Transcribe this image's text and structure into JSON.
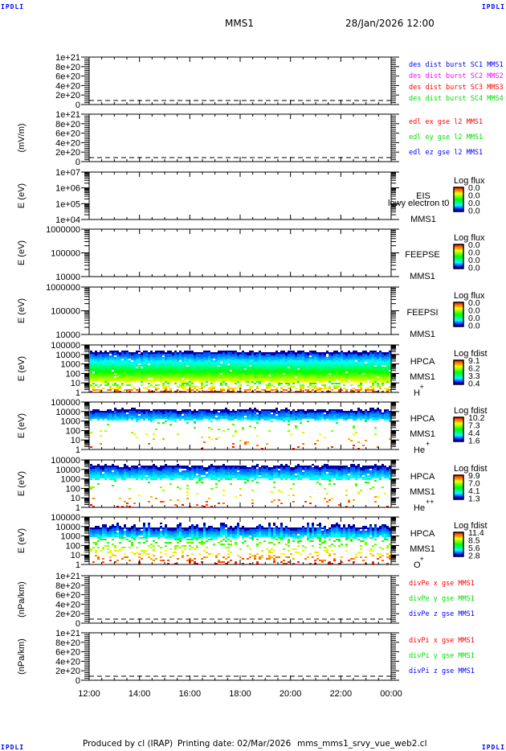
{
  "corners": {
    "tl": "IPDLI",
    "tr": "IPDLI",
    "bl": "IPDLI",
    "br": "IPDLI"
  },
  "header": {
    "spacecraft": "MMS1",
    "datetime": "28/Jan/2026 12:00"
  },
  "footer": {
    "produced": "Produced by cl (IRAP)",
    "printing": "Printing date: 02/Mar/2026",
    "file": "mms_mms1_srvy_vue_web2.cl"
  },
  "chart_data": {
    "type": "multi-panel time series / spectrogram",
    "x_ticks": [
      "12:00",
      "14:00",
      "16:00",
      "18:00",
      "20:00",
      "22:00",
      "00:00"
    ],
    "panels": [
      {
        "kind": "line",
        "ylabel": "",
        "yticks": [
          "1e+21",
          "8e+20",
          "6e+20",
          "4e+20",
          "2e+20",
          "0"
        ],
        "ylim": [
          0,
          1e+21
        ],
        "legend": [
          {
            "text": "des dist burst SC1 MMS1",
            "color": "#0000ff"
          },
          {
            "text": "des dist burst SC2 MMS2",
            "color": "#ff00ff"
          },
          {
            "text": "des dist burst SC3 MMS3",
            "color": "#ff0000"
          },
          {
            "text": "des dist burst SC4 MMS4",
            "color": "#00e000"
          }
        ],
        "values": []
      },
      {
        "kind": "line",
        "ylabel": "(mV/m)",
        "yticks": [
          "1e+21",
          "8e+20",
          "6e+20",
          "4e+20",
          "2e+20",
          "0"
        ],
        "ylim": [
          0,
          1e+21
        ],
        "legend": [
          {
            "text": "edl ex gse l2 MMS1",
            "color": "#ff0000"
          },
          {
            "text": "edl ey gse l2 MMS1",
            "color": "#00e000"
          },
          {
            "text": "edl ez gse l2 MMS1",
            "color": "#0000ff"
          }
        ],
        "values": []
      },
      {
        "kind": "spectrogram",
        "ylabel": "E (eV)",
        "yticks": [
          "1e+07",
          "1e+06",
          "1e+05",
          "1e+04"
        ],
        "ylim": [
          10000.0,
          10000000.0
        ],
        "labels": [
          "EIS",
          "lowy electron t0",
          "MMS1"
        ],
        "colorbar": {
          "title": "Log flux",
          "ticks": [
            "0.0",
            "0.0",
            "0.0",
            "0.0"
          ]
        },
        "species": null
      },
      {
        "kind": "spectrogram",
        "ylabel": "E (eV)",
        "yticks": [
          "1000000",
          "100000",
          "10000"
        ],
        "ylim": [
          10000.0,
          1000000.0
        ],
        "labels": [
          "FEEPSE",
          "MMS1"
        ],
        "colorbar": {
          "title": "Log flux",
          "ticks": [
            "0.0",
            "0.0",
            "0.0",
            "0.0"
          ]
        },
        "species": null
      },
      {
        "kind": "spectrogram",
        "ylabel": "E (eV)",
        "yticks": [
          "1000000",
          "100000",
          "10000"
        ],
        "ylim": [
          10000.0,
          1000000.0
        ],
        "labels": [
          "FEEPSI",
          "MMS1"
        ],
        "colorbar": {
          "title": "Log flux",
          "ticks": [
            "0.0",
            "0.0",
            "0.0",
            "0.0"
          ]
        },
        "species": null
      },
      {
        "kind": "spectrogram",
        "ylabel": "E (eV)",
        "yticks": [
          "100000",
          "10000",
          "1000",
          "100",
          "10",
          "1"
        ],
        "ylim": [
          1,
          100000.0
        ],
        "labels": [
          "HPCA",
          "MMS1"
        ],
        "ion": {
          "base": "H",
          "sup": "+"
        },
        "colorbar": {
          "title": "Log fdist",
          "ticks": [
            "9.1",
            "6.2",
            "3.3",
            "0.4"
          ]
        },
        "profile": {
          "top_logE": 4.4,
          "dense_low_logE": 1.1,
          "sparse_prob": 0.55
        }
      },
      {
        "kind": "spectrogram",
        "ylabel": "E (eV)",
        "yticks": [
          "100000",
          "10000",
          "1000",
          "100",
          "10",
          "1"
        ],
        "ylim": [
          1,
          100000.0
        ],
        "labels": [
          "HPCA",
          "MMS1"
        ],
        "ion": {
          "base": "He",
          "sup": "+"
        },
        "colorbar": {
          "title": "Log fdist",
          "ticks": [
            "10.2",
            "7.3",
            "4.4",
            "1.6"
          ]
        },
        "profile": {
          "top_logE": 4.3,
          "dense_low_logE": 3.15,
          "sparse_prob": 0.04
        }
      },
      {
        "kind": "spectrogram",
        "ylabel": "E (eV)",
        "yticks": [
          "100000",
          "10000",
          "1000",
          "100",
          "10",
          "1"
        ],
        "ylim": [
          1,
          100000.0
        ],
        "labels": [
          "HPCA",
          "MMS1"
        ],
        "ion": {
          "base": "He",
          "sup": "++"
        },
        "colorbar": {
          "title": "Log fdist",
          "ticks": [
            "9.9",
            "7.0",
            "4.1",
            "1.3"
          ]
        },
        "profile": {
          "top_logE": 4.5,
          "dense_low_logE": 3.0,
          "sparse_prob": 0.05
        }
      },
      {
        "kind": "spectrogram",
        "ylabel": "E (eV)",
        "yticks": [
          "100000",
          "10000",
          "1000",
          "100",
          "10",
          "1"
        ],
        "ylim": [
          1,
          100000.0
        ],
        "labels": [
          "HPCA",
          "MMS1"
        ],
        "ion": {
          "base": "O",
          "sup": "+"
        },
        "colorbar": {
          "title": "Log fdist",
          "ticks": [
            "11.4",
            "8.5",
            "5.6",
            "2.8"
          ]
        },
        "profile": {
          "top_logE": 4.0,
          "dense_low_logE": 2.9,
          "sparse_prob": 0.2
        }
      },
      {
        "kind": "line",
        "ylabel": "(nPa/km)",
        "yticks": [
          "1e+21",
          "8e+20",
          "6e+20",
          "4e+20",
          "2e+20",
          "0"
        ],
        "ylim": [
          0,
          1e+21
        ],
        "legend": [
          {
            "text": "divPe x gse MMS1",
            "color": "#ff0000"
          },
          {
            "text": "divPe y gse MMS1",
            "color": "#00e000"
          },
          {
            "text": "divPe z gse MMS1",
            "color": "#0000ff"
          }
        ],
        "values": []
      },
      {
        "kind": "line",
        "ylabel": "(nPa/km)",
        "yticks": [
          "1e+21",
          "8e+20",
          "6e+20",
          "4e+20",
          "2e+20",
          "0"
        ],
        "ylim": [
          0,
          1e+21
        ],
        "legend": [
          {
            "text": "divPi x gse MMS1",
            "color": "#ff0000"
          },
          {
            "text": "divPi y gse MMS1",
            "color": "#00e000"
          },
          {
            "text": "divPi z gse MMS1",
            "color": "#0000ff"
          }
        ],
        "values": []
      }
    ]
  }
}
